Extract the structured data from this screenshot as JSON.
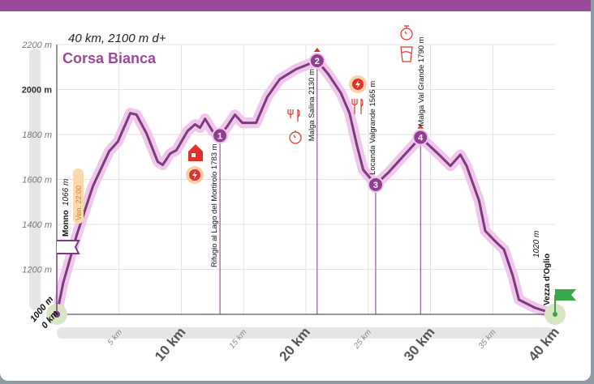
{
  "chart_data": {
    "type": "area",
    "title": "Corsa Bianca",
    "subtitle": "40 km, 2100 m d+",
    "xlabel": "",
    "ylabel": "",
    "xlim": [
      0,
      40
    ],
    "ylim": [
      1000,
      2200
    ],
    "grid": true,
    "x_ticks": [
      {
        "v": 5,
        "label": "5 km",
        "major": false
      },
      {
        "v": 10,
        "label": "10 km",
        "major": true
      },
      {
        "v": 15,
        "label": "15 km",
        "major": false
      },
      {
        "v": 20,
        "label": "20 km",
        "major": true
      },
      {
        "v": 25,
        "label": "25 km",
        "major": false
      },
      {
        "v": 30,
        "label": "30 km",
        "major": true
      },
      {
        "v": 35,
        "label": "35 km",
        "major": false
      },
      {
        "v": 40,
        "label": "40 km",
        "major": true
      }
    ],
    "y_ticks": [
      {
        "v": 1200,
        "label": "1200 m",
        "major": false
      },
      {
        "v": 1400,
        "label": "1400 m",
        "major": false
      },
      {
        "v": 1600,
        "label": "1600 m",
        "major": false
      },
      {
        "v": 1800,
        "label": "1800 m",
        "major": false
      },
      {
        "v": 2000,
        "label": "2000 m",
        "major": true
      },
      {
        "v": 2200,
        "label": "2200 m",
        "major": false
      }
    ],
    "origin_label": {
      "elev": "1000 m",
      "dist": "0 km"
    },
    "profile": [
      [
        0,
        1000
      ],
      [
        0.5,
        1137
      ],
      [
        1.6,
        1353
      ],
      [
        2.9,
        1570
      ],
      [
        4.2,
        1725
      ],
      [
        4.9,
        1768
      ],
      [
        5.9,
        1895
      ],
      [
        6.4,
        1888
      ],
      [
        7.2,
        1805
      ],
      [
        8.1,
        1679
      ],
      [
        8.5,
        1665
      ],
      [
        9.1,
        1715
      ],
      [
        9.6,
        1730
      ],
      [
        10.5,
        1816
      ],
      [
        11.1,
        1845
      ],
      [
        11.5,
        1830
      ],
      [
        11.9,
        1870
      ],
      [
        12.5,
        1815
      ],
      [
        13.1,
        1795
      ],
      [
        13.7,
        1838
      ],
      [
        14.3,
        1888
      ],
      [
        14.9,
        1852
      ],
      [
        16,
        1852
      ],
      [
        16.9,
        1967
      ],
      [
        17.9,
        2046
      ],
      [
        19.2,
        2090
      ],
      [
        20.9,
        2128
      ],
      [
        21.8,
        2068
      ],
      [
        22.8,
        1985
      ],
      [
        23.5,
        1895
      ],
      [
        24.1,
        1751
      ],
      [
        24.6,
        1643
      ],
      [
        25.6,
        1577
      ],
      [
        26.7,
        1635
      ],
      [
        28,
        1715
      ],
      [
        29.2,
        1787
      ],
      [
        30.6,
        1715
      ],
      [
        31.6,
        1660
      ],
      [
        32.4,
        1710
      ],
      [
        32.9,
        1660
      ],
      [
        33.9,
        1505
      ],
      [
        34.4,
        1371
      ],
      [
        35.2,
        1325
      ],
      [
        35.9,
        1288
      ],
      [
        36.6,
        1173
      ],
      [
        37.1,
        1065
      ],
      [
        38.4,
        1029
      ],
      [
        40,
        1000
      ]
    ],
    "start": {
      "name": "Monno",
      "elev": "1066 m",
      "time": "Ven. 22:00"
    },
    "finish": {
      "name": "Vezza d'Oglio",
      "elev": "1020 m"
    },
    "stations": [
      {
        "n": "1",
        "km": 13.1,
        "elev": 1795,
        "label": "Rifugio al Lago del Mortirolo 1783 m"
      },
      {
        "n": "2",
        "km": 20.9,
        "elev": 2128,
        "label": "Malga Salina 2130 m"
      },
      {
        "n": "3",
        "km": 25.6,
        "elev": 1577,
        "label": "Locanda Valgrande 1565 m"
      },
      {
        "n": "4",
        "km": 29.2,
        "elev": 1787,
        "label": "Malga Val Grande 1790 m"
      }
    ]
  },
  "colors": {
    "accent": "#9a4a98",
    "halo": "#f0c6ec",
    "line": "#7b3b7d",
    "flag": "#3aa84a",
    "alert": "#e0322c"
  }
}
